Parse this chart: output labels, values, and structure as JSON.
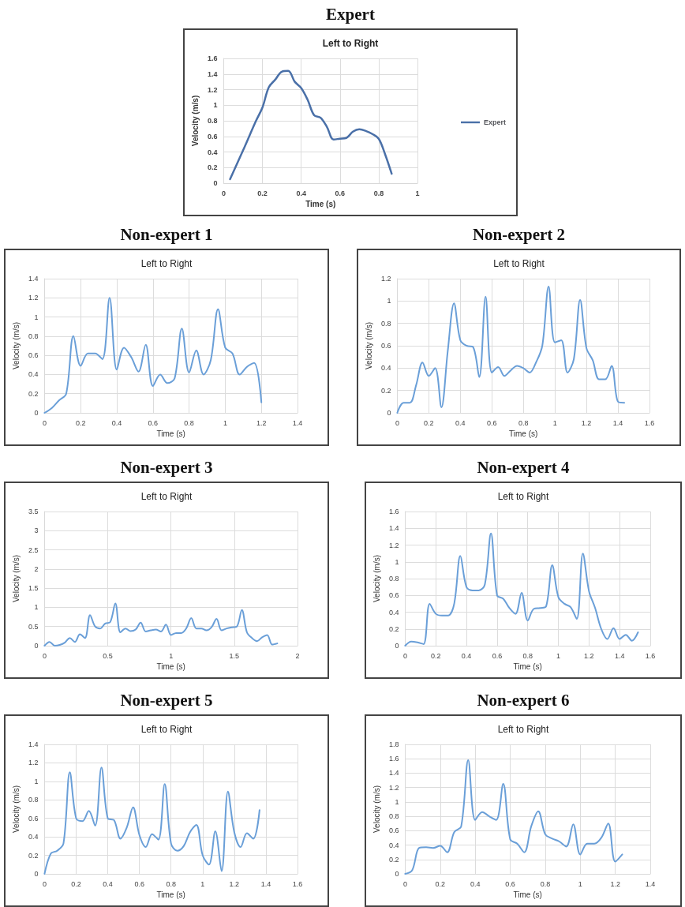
{
  "chart_data": [
    {
      "type": "line",
      "title": "Expert",
      "subtitle": "Left to Right",
      "xlabel": "Time (s)",
      "ylabel": "Velocity (m/s)",
      "legend": "right",
      "grid": true,
      "marker": "none",
      "line_style": "solid",
      "xlim": [
        0,
        1
      ],
      "xticks": [
        0,
        0.2,
        0.4,
        0.6,
        0.8,
        1
      ],
      "ylim": [
        0,
        1.6
      ],
      "yticks": [
        0,
        0.2,
        0.4,
        0.6,
        0.8,
        1,
        1.2,
        1.4,
        1.6
      ],
      "x": [
        0.033,
        0.1,
        0.167,
        0.2,
        0.233,
        0.267,
        0.3,
        0.333,
        0.367,
        0.4,
        0.433,
        0.467,
        0.5,
        0.533,
        0.567,
        0.6,
        0.633,
        0.667,
        0.7,
        0.733,
        0.767,
        0.8,
        0.833,
        0.867
      ],
      "series": [
        {
          "name": "Expert",
          "color": "#4a70a8",
          "values": [
            0.05,
            0.42,
            0.8,
            0.97,
            1.23,
            1.33,
            1.43,
            1.44,
            1.3,
            1.22,
            1.07,
            0.87,
            0.84,
            0.72,
            0.56,
            0.57,
            0.58,
            0.66,
            0.69,
            0.67,
            0.63,
            0.57,
            0.37,
            0.12
          ]
        }
      ]
    },
    {
      "type": "line",
      "title": "Non-expert 1",
      "subtitle": "Left to Right",
      "xlabel": "Time (s)",
      "ylabel": "Velocity (m/s)",
      "grid": true,
      "marker": "none",
      "line_style": "solid",
      "xlim": [
        0,
        1.4
      ],
      "xticks": [
        0,
        0.2,
        0.4,
        0.6,
        0.8,
        1,
        1.2,
        1.4
      ],
      "ylim": [
        0,
        1.4
      ],
      "yticks": [
        0,
        0.2,
        0.4,
        0.6,
        0.8,
        1,
        1.2,
        1.4
      ],
      "x": [
        0,
        0.04,
        0.08,
        0.12,
        0.16,
        0.2,
        0.24,
        0.28,
        0.32,
        0.36,
        0.4,
        0.44,
        0.48,
        0.52,
        0.56,
        0.6,
        0.64,
        0.68,
        0.72,
        0.76,
        0.8,
        0.84,
        0.88,
        0.92,
        0.96,
        1.0,
        1.04,
        1.08,
        1.12,
        1.16,
        1.2
      ],
      "series": [
        {
          "color": "#6a9fd8",
          "values": [
            0,
            0.05,
            0.13,
            0.2,
            0.8,
            0.49,
            0.62,
            0.62,
            0.56,
            1.2,
            0.45,
            0.68,
            0.58,
            0.43,
            0.71,
            0.28,
            0.4,
            0.31,
            0.36,
            0.88,
            0.42,
            0.65,
            0.4,
            0.55,
            1.08,
            0.68,
            0.62,
            0.4,
            0.48,
            0.52,
            0.11
          ]
        }
      ]
    },
    {
      "type": "line",
      "title": "Non-expert 2",
      "subtitle": "Left to Right",
      "xlabel": "Time (s)",
      "ylabel": "Velocity (m/s)",
      "grid": true,
      "marker": "none",
      "line_style": "solid",
      "xlim": [
        0,
        1.6
      ],
      "xticks": [
        0,
        0.2,
        0.4,
        0.6,
        0.8,
        1,
        1.2,
        1.4,
        1.6
      ],
      "ylim": [
        0,
        1.2
      ],
      "yticks": [
        0,
        0.2,
        0.4,
        0.6,
        0.8,
        1,
        1.2
      ],
      "x": [
        0,
        0.04,
        0.08,
        0.12,
        0.16,
        0.2,
        0.24,
        0.28,
        0.32,
        0.36,
        0.4,
        0.44,
        0.48,
        0.52,
        0.56,
        0.6,
        0.64,
        0.68,
        0.72,
        0.76,
        0.8,
        0.84,
        0.88,
        0.92,
        0.96,
        1.0,
        1.04,
        1.08,
        1.12,
        1.16,
        1.2,
        1.24,
        1.28,
        1.32,
        1.36,
        1.4,
        1.44
      ],
      "series": [
        {
          "color": "#6a9fd8",
          "values": [
            0,
            0.09,
            0.09,
            0.25,
            0.45,
            0.33,
            0.4,
            0.05,
            0.55,
            0.98,
            0.65,
            0.6,
            0.59,
            0.32,
            1.04,
            0.36,
            0.41,
            0.33,
            0.38,
            0.42,
            0.4,
            0.36,
            0.45,
            0.6,
            1.13,
            0.63,
            0.65,
            0.36,
            0.48,
            1.01,
            0.58,
            0.47,
            0.3,
            0.3,
            0.42,
            0.1,
            0.09
          ]
        }
      ]
    },
    {
      "type": "line",
      "title": "Non-expert 3",
      "subtitle": "Left to Right",
      "xlabel": "Time (s)",
      "ylabel": "Velocity (m/s)",
      "grid": true,
      "marker": "none",
      "line_style": "solid",
      "xlim": [
        0,
        2
      ],
      "xticks": [
        0,
        0.5,
        1,
        1.5,
        2
      ],
      "ylim": [
        0,
        3.5
      ],
      "yticks": [
        0,
        0.5,
        1,
        1.5,
        2,
        2.5,
        3,
        3.5
      ],
      "x": [
        0,
        0.04,
        0.08,
        0.12,
        0.16,
        0.2,
        0.24,
        0.28,
        0.32,
        0.36,
        0.4,
        0.44,
        0.48,
        0.52,
        0.56,
        0.6,
        0.64,
        0.68,
        0.72,
        0.76,
        0.8,
        0.84,
        0.88,
        0.92,
        0.96,
        1.0,
        1.04,
        1.08,
        1.12,
        1.16,
        1.2,
        1.24,
        1.28,
        1.32,
        1.36,
        1.4,
        1.44,
        1.48,
        1.52,
        1.56,
        1.6,
        1.64,
        1.68,
        1.72,
        1.76,
        1.8,
        1.84
      ],
      "series": [
        {
          "color": "#6a9fd8",
          "values": [
            0,
            0.1,
            0,
            0.02,
            0.08,
            0.2,
            0.1,
            0.3,
            0.2,
            0.8,
            0.5,
            0.45,
            0.58,
            0.62,
            1.1,
            0.35,
            0.45,
            0.38,
            0.42,
            0.6,
            0.37,
            0.4,
            0.42,
            0.37,
            0.55,
            0.28,
            0.33,
            0.33,
            0.45,
            0.72,
            0.45,
            0.45,
            0.4,
            0.48,
            0.7,
            0.4,
            0.45,
            0.48,
            0.5,
            0.93,
            0.35,
            0.2,
            0.12,
            0.22,
            0.28,
            0.03,
            0.06
          ]
        }
      ]
    },
    {
      "type": "line",
      "title": "Non-expert 4",
      "subtitle": "Left to Right",
      "xlabel": "Time (s)",
      "ylabel": "Velocity (m/s)",
      "grid": true,
      "marker": "none",
      "line_style": "solid",
      "xlim": [
        0,
        1.6
      ],
      "xticks": [
        0,
        0.2,
        0.4,
        0.6,
        0.8,
        1,
        1.2,
        1.4,
        1.6
      ],
      "ylim": [
        0,
        1.6
      ],
      "yticks": [
        0,
        0.2,
        0.4,
        0.6,
        0.8,
        1,
        1.2,
        1.4,
        1.6
      ],
      "x": [
        0,
        0.04,
        0.08,
        0.12,
        0.16,
        0.2,
        0.24,
        0.28,
        0.32,
        0.36,
        0.4,
        0.44,
        0.48,
        0.52,
        0.56,
        0.6,
        0.64,
        0.68,
        0.72,
        0.76,
        0.8,
        0.84,
        0.88,
        0.92,
        0.96,
        1.0,
        1.04,
        1.08,
        1.12,
        1.16,
        1.2,
        1.24,
        1.28,
        1.32,
        1.36,
        1.4,
        1.44,
        1.48,
        1.52
      ],
      "series": [
        {
          "color": "#6a9fd8",
          "values": [
            0,
            0.05,
            0.04,
            0.02,
            0.5,
            0.38,
            0.36,
            0.36,
            0.5,
            1.07,
            0.7,
            0.66,
            0.66,
            0.73,
            1.34,
            0.6,
            0.56,
            0.45,
            0.38,
            0.63,
            0.3,
            0.44,
            0.45,
            0.47,
            0.96,
            0.58,
            0.5,
            0.46,
            0.32,
            1.1,
            0.65,
            0.45,
            0.2,
            0.08,
            0.21,
            0.08,
            0.13,
            0.06,
            0.16
          ]
        }
      ]
    },
    {
      "type": "line",
      "title": "Non-expert 5",
      "subtitle": "Left to Right",
      "xlabel": "Time (s)",
      "ylabel": "Velocity (m/s)",
      "grid": true,
      "marker": "none",
      "line_style": "solid",
      "xlim": [
        0,
        1.6
      ],
      "xticks": [
        0,
        0.2,
        0.4,
        0.6,
        0.8,
        1,
        1.2,
        1.4,
        1.6
      ],
      "ylim": [
        0,
        1.4
      ],
      "yticks": [
        0,
        0.2,
        0.4,
        0.6,
        0.8,
        1,
        1.2,
        1.4
      ],
      "x": [
        0,
        0.04,
        0.08,
        0.12,
        0.16,
        0.2,
        0.24,
        0.28,
        0.32,
        0.36,
        0.4,
        0.44,
        0.48,
        0.52,
        0.56,
        0.6,
        0.64,
        0.68,
        0.72,
        0.76,
        0.8,
        0.84,
        0.88,
        0.92,
        0.96,
        1.0,
        1.04,
        1.08,
        1.12,
        1.16,
        1.2,
        1.24,
        1.28,
        1.32,
        1.36
      ],
      "series": [
        {
          "color": "#6a9fd8",
          "values": [
            0,
            0.22,
            0.25,
            0.33,
            1.1,
            0.6,
            0.57,
            0.68,
            0.52,
            1.15,
            0.6,
            0.58,
            0.38,
            0.5,
            0.72,
            0.42,
            0.29,
            0.43,
            0.37,
            0.97,
            0.33,
            0.25,
            0.3,
            0.45,
            0.53,
            0.2,
            0.1,
            0.46,
            0.03,
            0.89,
            0.45,
            0.29,
            0.44,
            0.38,
            0.69
          ]
        }
      ]
    },
    {
      "type": "line",
      "title": "Non-expert 6",
      "subtitle": "Left to Right",
      "xlabel": "Time (s)",
      "ylabel": "Velocity (m/s)",
      "grid": true,
      "marker": "none",
      "line_style": "solid",
      "xlim": [
        0,
        1.4
      ],
      "xticks": [
        0,
        0.2,
        0.4,
        0.6,
        0.8,
        1,
        1.2,
        1.4
      ],
      "ylim": [
        0,
        1.8
      ],
      "yticks": [
        0,
        0.2,
        0.4,
        0.6,
        0.8,
        1,
        1.2,
        1.4,
        1.6,
        1.8
      ],
      "x": [
        0,
        0.04,
        0.08,
        0.12,
        0.16,
        0.2,
        0.24,
        0.28,
        0.32,
        0.36,
        0.4,
        0.44,
        0.48,
        0.52,
        0.56,
        0.6,
        0.64,
        0.68,
        0.72,
        0.76,
        0.8,
        0.84,
        0.88,
        0.92,
        0.96,
        1.0,
        1.04,
        1.08,
        1.12,
        1.16,
        1.2,
        1.24
      ],
      "series": [
        {
          "color": "#6a9fd8",
          "values": [
            0,
            0.05,
            0.36,
            0.37,
            0.36,
            0.39,
            0.3,
            0.58,
            0.66,
            1.58,
            0.75,
            0.86,
            0.8,
            0.75,
            1.25,
            0.48,
            0.42,
            0.3,
            0.66,
            0.87,
            0.55,
            0.49,
            0.45,
            0.38,
            0.69,
            0.27,
            0.42,
            0.42,
            0.5,
            0.7,
            0.17,
            0.27
          ]
        }
      ]
    }
  ]
}
